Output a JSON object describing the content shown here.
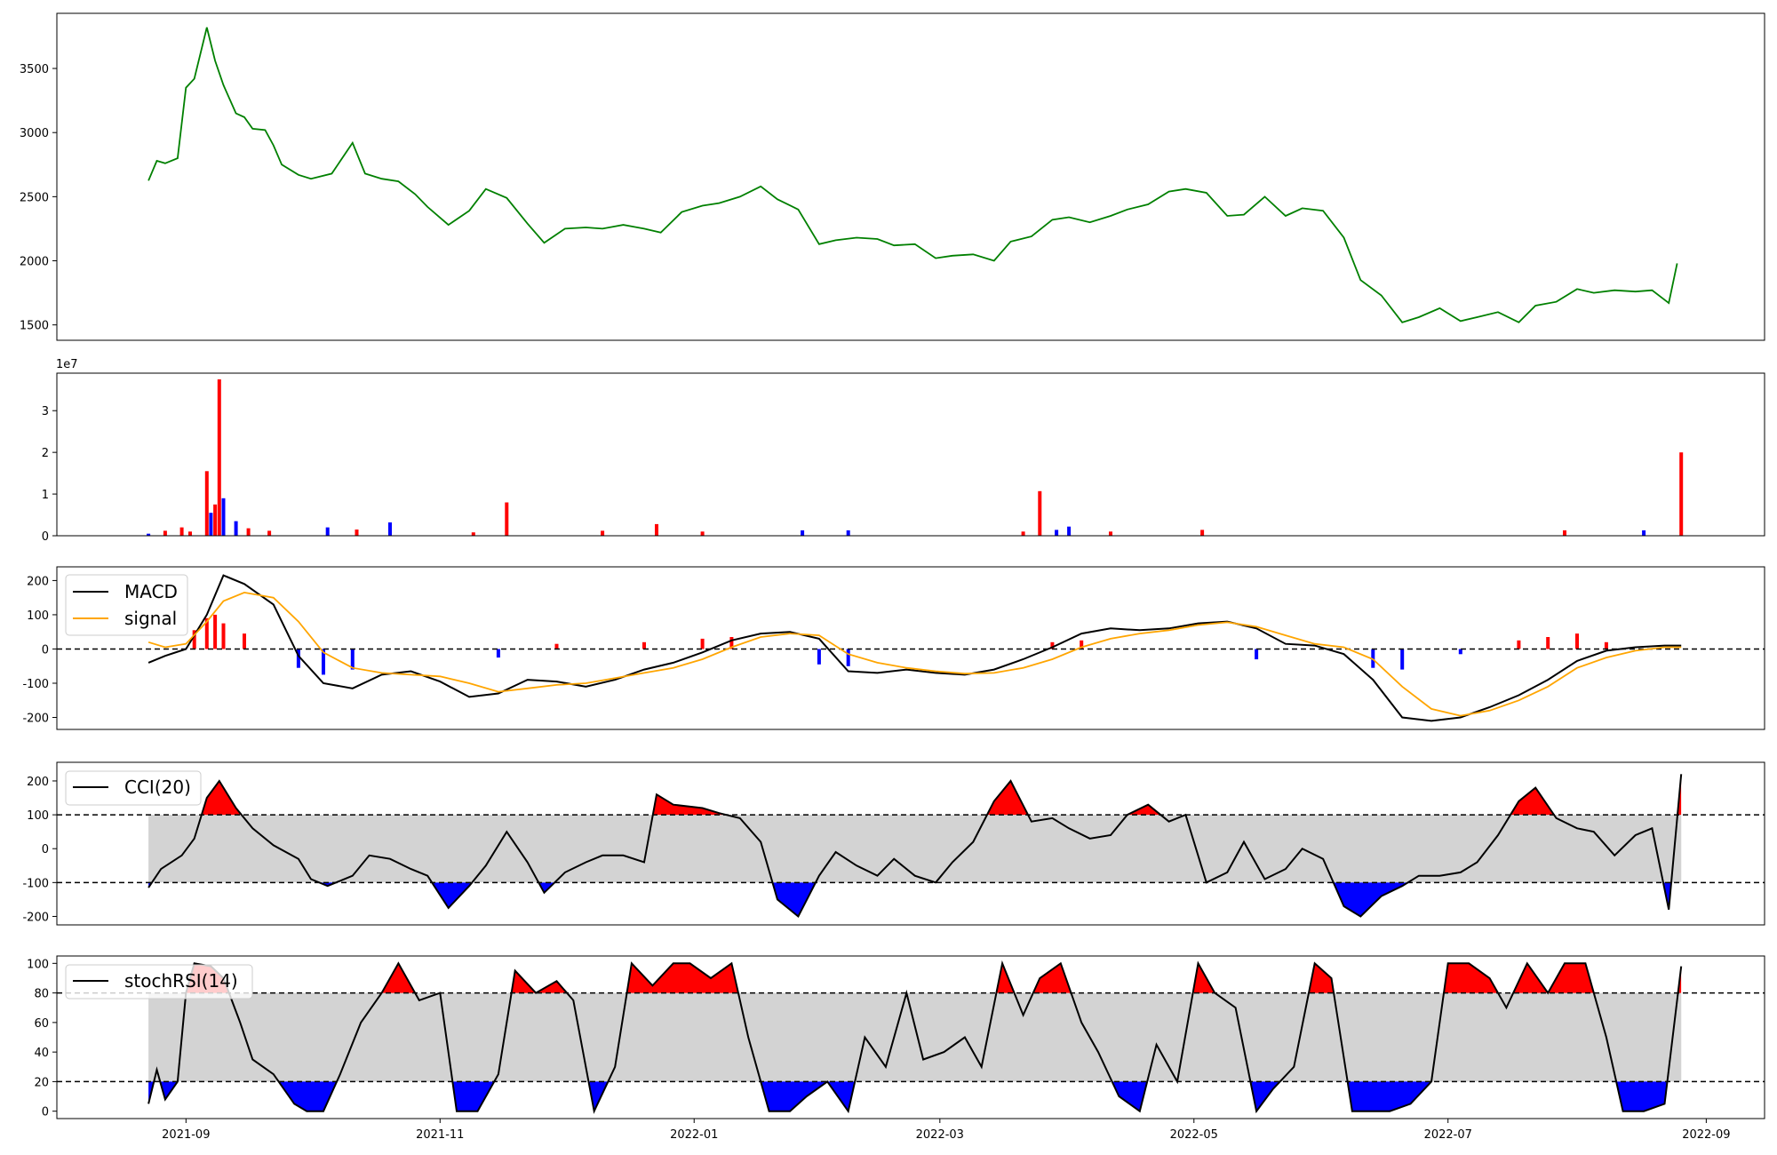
{
  "figure": {
    "x_axis": {
      "start": "2021-08-01",
      "end": "2022-09-15",
      "tick_labels": [
        "2021-09",
        "2021-11",
        "2022-01",
        "2022-03",
        "2022-05",
        "2022-07",
        "2022-09"
      ],
      "tick_dates": [
        "2021-09-01",
        "2021-11-01",
        "2022-01-01",
        "2022-03-01",
        "2022-05-01",
        "2022-07-01",
        "2022-09-01"
      ]
    }
  },
  "chart_data": [
    {
      "type": "line",
      "panel": "price",
      "color": "#008000",
      "ylim": [
        1380,
        3930
      ],
      "yticks": [
        1500,
        2000,
        2500,
        3000,
        3500
      ],
      "x": [
        "2021-08-23",
        "2021-08-25",
        "2021-08-27",
        "2021-08-30",
        "2021-09-01",
        "2021-09-03",
        "2021-09-06",
        "2021-09-08",
        "2021-09-10",
        "2021-09-13",
        "2021-09-15",
        "2021-09-17",
        "2021-09-20",
        "2021-09-22",
        "2021-09-24",
        "2021-09-28",
        "2021-10-01",
        "2021-10-06",
        "2021-10-11",
        "2021-10-14",
        "2021-10-18",
        "2021-10-22",
        "2021-10-26",
        "2021-10-29",
        "2021-11-03",
        "2021-11-08",
        "2021-11-12",
        "2021-11-17",
        "2021-11-22",
        "2021-11-26",
        "2021-12-01",
        "2021-12-06",
        "2021-12-10",
        "2021-12-15",
        "2021-12-20",
        "2021-12-24",
        "2021-12-29",
        "2022-01-03",
        "2022-01-07",
        "2022-01-12",
        "2022-01-17",
        "2022-01-21",
        "2022-01-26",
        "2022-01-31",
        "2022-02-04",
        "2022-02-09",
        "2022-02-14",
        "2022-02-18",
        "2022-02-23",
        "2022-02-28",
        "2022-03-04",
        "2022-03-09",
        "2022-03-14",
        "2022-03-18",
        "2022-03-23",
        "2022-03-28",
        "2022-04-01",
        "2022-04-06",
        "2022-04-11",
        "2022-04-15",
        "2022-04-20",
        "2022-04-25",
        "2022-04-29",
        "2022-05-04",
        "2022-05-09",
        "2022-05-13",
        "2022-05-18",
        "2022-05-23",
        "2022-05-27",
        "2022-06-01",
        "2022-06-06",
        "2022-06-10",
        "2022-06-15",
        "2022-06-20",
        "2022-06-24",
        "2022-06-29",
        "2022-07-04",
        "2022-07-08",
        "2022-07-13",
        "2022-07-18",
        "2022-07-22",
        "2022-07-27",
        "2022-08-01",
        "2022-08-05",
        "2022-08-10",
        "2022-08-15",
        "2022-08-19",
        "2022-08-23",
        "2022-08-25"
      ],
      "values": [
        2625,
        2780,
        2760,
        2800,
        3350,
        3420,
        3820,
        3560,
        3370,
        3150,
        3120,
        3030,
        3020,
        2900,
        2750,
        2670,
        2640,
        2680,
        2920,
        2680,
        2640,
        2620,
        2520,
        2420,
        2280,
        2390,
        2560,
        2490,
        2290,
        2140,
        2250,
        2260,
        2250,
        2280,
        2250,
        2220,
        2380,
        2430,
        2450,
        2500,
        2580,
        2480,
        2400,
        2130,
        2160,
        2180,
        2170,
        2120,
        2130,
        2020,
        2040,
        2050,
        2000,
        2150,
        2190,
        2320,
        2340,
        2300,
        2350,
        2400,
        2440,
        2540,
        2560,
        2530,
        2350,
        2360,
        2500,
        2350,
        2410,
        2390,
        2180,
        1850,
        1730,
        1520,
        1560,
        1630,
        1530,
        1560,
        1600,
        1520,
        1650,
        1680,
        1780,
        1750,
        1770,
        1760,
        1770,
        1670,
        1980
      ]
    },
    {
      "type": "bar",
      "panel": "volume",
      "scale_label": "1e7",
      "ylim": [
        0,
        3.9
      ],
      "yticks": [
        0,
        1,
        2,
        3
      ],
      "colors": {
        "up": "#ff0000",
        "down": "#0000ff"
      },
      "x": [
        "2021-08-23",
        "2021-08-27",
        "2021-08-31",
        "2021-09-02",
        "2021-09-06",
        "2021-09-07",
        "2021-09-08",
        "2021-09-09",
        "2021-09-10",
        "2021-09-13",
        "2021-09-16",
        "2021-09-21",
        "2021-10-05",
        "2021-10-12",
        "2021-10-20",
        "2021-11-09",
        "2021-11-17",
        "2021-12-10",
        "2021-12-23",
        "2022-01-03",
        "2022-01-27",
        "2022-02-07",
        "2022-03-21",
        "2022-03-25",
        "2022-03-29",
        "2022-04-01",
        "2022-04-11",
        "2022-05-03",
        "2022-07-29",
        "2022-08-17",
        "2022-08-26"
      ],
      "values": [
        0.05,
        0.12,
        0.2,
        0.1,
        1.55,
        0.55,
        0.75,
        3.75,
        0.9,
        0.35,
        0.18,
        0.12,
        0.2,
        0.15,
        0.32,
        0.08,
        0.8,
        0.12,
        0.28,
        0.1,
        0.13,
        0.13,
        0.1,
        1.07,
        0.14,
        0.22,
        0.1,
        0.14,
        0.13,
        0.13,
        2.0
      ],
      "direction": [
        "down",
        "up",
        "up",
        "up",
        "up",
        "down",
        "up",
        "up",
        "down",
        "down",
        "up",
        "up",
        "down",
        "up",
        "down",
        "up",
        "up",
        "up",
        "up",
        "up",
        "down",
        "down",
        "up",
        "up",
        "down",
        "down",
        "up",
        "up",
        "up",
        "down",
        "up"
      ]
    },
    {
      "type": "line",
      "panel": "macd",
      "ylim": [
        -235,
        240
      ],
      "yticks": [
        -200,
        -100,
        0,
        100,
        200
      ],
      "reference_lines": [
        0
      ],
      "legend_position": "upper left",
      "x": [
        "2021-08-23",
        "2021-08-27",
        "2021-09-01",
        "2021-09-06",
        "2021-09-10",
        "2021-09-15",
        "2021-09-22",
        "2021-09-28",
        "2021-10-04",
        "2021-10-11",
        "2021-10-18",
        "2021-10-25",
        "2021-11-01",
        "2021-11-08",
        "2021-11-15",
        "2021-11-22",
        "2021-11-29",
        "2021-12-06",
        "2021-12-13",
        "2021-12-20",
        "2021-12-27",
        "2022-01-03",
        "2022-01-10",
        "2022-01-17",
        "2022-01-24",
        "2022-01-31",
        "2022-02-07",
        "2022-02-14",
        "2022-02-21",
        "2022-02-28",
        "2022-03-07",
        "2022-03-14",
        "2022-03-21",
        "2022-03-28",
        "2022-04-04",
        "2022-04-11",
        "2022-04-18",
        "2022-04-25",
        "2022-05-02",
        "2022-05-09",
        "2022-05-16",
        "2022-05-23",
        "2022-05-30",
        "2022-06-06",
        "2022-06-13",
        "2022-06-20",
        "2022-06-27",
        "2022-07-04",
        "2022-07-11",
        "2022-07-18",
        "2022-07-25",
        "2022-08-01",
        "2022-08-08",
        "2022-08-15",
        "2022-08-22",
        "2022-08-26"
      ],
      "series": [
        {
          "name": "MACD",
          "color": "#000000",
          "values": [
            -40,
            -20,
            0,
            100,
            215,
            190,
            130,
            -20,
            -100,
            -115,
            -75,
            -65,
            -95,
            -140,
            -130,
            -90,
            -95,
            -110,
            -90,
            -60,
            -40,
            -10,
            25,
            45,
            50,
            30,
            -65,
            -70,
            -60,
            -70,
            -75,
            -60,
            -30,
            5,
            45,
            60,
            55,
            60,
            75,
            80,
            60,
            15,
            10,
            -15,
            -90,
            -200,
            -210,
            -200,
            -170,
            -135,
            -90,
            -35,
            -5,
            5,
            10,
            10
          ]
        },
        {
          "name": "signal",
          "color": "#ffa500",
          "values": [
            20,
            5,
            15,
            80,
            140,
            165,
            150,
            80,
            -10,
            -55,
            -70,
            -75,
            -80,
            -100,
            -125,
            -115,
            -105,
            -100,
            -85,
            -70,
            -55,
            -30,
            5,
            35,
            45,
            40,
            -15,
            -40,
            -55,
            -65,
            -72,
            -70,
            -55,
            -30,
            5,
            30,
            45,
            55,
            70,
            78,
            65,
            40,
            15,
            5,
            -30,
            -110,
            -175,
            -195,
            -180,
            -150,
            -110,
            -55,
            -25,
            -5,
            5,
            5
          ]
        }
      ],
      "histogram": {
        "x": [
          "2021-09-03",
          "2021-09-06",
          "2021-09-08",
          "2021-09-10",
          "2021-09-15",
          "2021-09-28",
          "2021-10-04",
          "2021-10-11",
          "2021-11-15",
          "2021-11-29",
          "2021-12-20",
          "2022-01-03",
          "2022-01-10",
          "2022-01-31",
          "2022-02-07",
          "2022-03-28",
          "2022-04-04",
          "2022-05-16",
          "2022-06-13",
          "2022-06-20",
          "2022-07-04",
          "2022-07-18",
          "2022-07-25",
          "2022-08-01",
          "2022-08-08"
        ],
        "values": [
          55,
          90,
          100,
          75,
          45,
          -55,
          -75,
          -60,
          -25,
          15,
          20,
          30,
          35,
          -45,
          -50,
          20,
          25,
          -30,
          -55,
          -60,
          -15,
          25,
          35,
          45,
          20
        ],
        "colors": {
          "positive": "#ff0000",
          "negative": "#0000ff"
        }
      }
    },
    {
      "type": "line",
      "panel": "cci",
      "ylim": [
        -225,
        255
      ],
      "yticks": [
        -200,
        -100,
        0,
        100,
        200
      ],
      "reference_lines": [
        100,
        -100
      ],
      "band_fill": "#d3d3d3",
      "above_fill": "#ff0000",
      "below_fill": "#0000ff",
      "legend_position": "upper left",
      "series": [
        {
          "name": "CCI(20)",
          "color": "#000000",
          "x": [
            "2021-08-23",
            "2021-08-26",
            "2021-08-31",
            "2021-09-03",
            "2021-09-06",
            "2021-09-09",
            "2021-09-13",
            "2021-09-17",
            "2021-09-22",
            "2021-09-28",
            "2021-10-01",
            "2021-10-05",
            "2021-10-11",
            "2021-10-15",
            "2021-10-20",
            "2021-10-25",
            "2021-10-29",
            "2021-11-03",
            "2021-11-08",
            "2021-11-12",
            "2021-11-17",
            "2021-11-22",
            "2021-11-26",
            "2021-12-01",
            "2021-12-06",
            "2021-12-10",
            "2021-12-15",
            "2021-12-20",
            "2021-12-23",
            "2021-12-27",
            "2022-01-03",
            "2022-01-07",
            "2022-01-12",
            "2022-01-17",
            "2022-01-21",
            "2022-01-26",
            "2022-01-31",
            "2022-02-04",
            "2022-02-09",
            "2022-02-14",
            "2022-02-18",
            "2022-02-23",
            "2022-02-28",
            "2022-03-04",
            "2022-03-09",
            "2022-03-14",
            "2022-03-18",
            "2022-03-23",
            "2022-03-28",
            "2022-04-01",
            "2022-04-06",
            "2022-04-11",
            "2022-04-15",
            "2022-04-20",
            "2022-04-25",
            "2022-04-29",
            "2022-05-04",
            "2022-05-09",
            "2022-05-13",
            "2022-05-18",
            "2022-05-23",
            "2022-05-27",
            "2022-06-01",
            "2022-06-06",
            "2022-06-10",
            "2022-06-15",
            "2022-06-20",
            "2022-06-24",
            "2022-06-29",
            "2022-07-04",
            "2022-07-08",
            "2022-07-13",
            "2022-07-18",
            "2022-07-22",
            "2022-07-27",
            "2022-08-01",
            "2022-08-05",
            "2022-08-10",
            "2022-08-15",
            "2022-08-19",
            "2022-08-23",
            "2022-08-26"
          ],
          "values": [
            -115,
            -60,
            -20,
            30,
            150,
            200,
            120,
            60,
            10,
            -30,
            -90,
            -110,
            -80,
            -20,
            -30,
            -60,
            -80,
            -175,
            -110,
            -50,
            50,
            -40,
            -130,
            -70,
            -40,
            -20,
            -20,
            -40,
            160,
            130,
            120,
            105,
            90,
            20,
            -150,
            -200,
            -80,
            -10,
            -50,
            -80,
            -30,
            -80,
            -100,
            -40,
            20,
            140,
            200,
            80,
            90,
            60,
            30,
            40,
            100,
            130,
            80,
            100,
            -100,
            -70,
            20,
            -90,
            -60,
            0,
            -30,
            -170,
            -200,
            -140,
            -110,
            -80,
            -80,
            -70,
            -40,
            40,
            140,
            180,
            90,
            60,
            50,
            -20,
            40,
            60,
            -180,
            220
          ]
        }
      ]
    },
    {
      "type": "line",
      "panel": "stochrsi",
      "ylim": [
        -5,
        105
      ],
      "yticks": [
        0,
        20,
        40,
        60,
        80,
        100
      ],
      "reference_lines": [
        80,
        20
      ],
      "band_fill": "#d3d3d3",
      "above_fill": "#ff0000",
      "below_fill": "#0000ff",
      "legend_position": "upper left",
      "series": [
        {
          "name": "stochRSI(14)",
          "color": "#000000",
          "x": [
            "2021-08-23",
            "2021-08-25",
            "2021-08-27",
            "2021-08-30",
            "2021-09-01",
            "2021-09-03",
            "2021-09-07",
            "2021-09-10",
            "2021-09-14",
            "2021-09-17",
            "2021-09-22",
            "2021-09-27",
            "2021-09-30",
            "2021-10-04",
            "2021-10-08",
            "2021-10-13",
            "2021-10-18",
            "2021-10-22",
            "2021-10-27",
            "2021-11-01",
            "2021-11-05",
            "2021-11-10",
            "2021-11-15",
            "2021-11-19",
            "2021-11-24",
            "2021-11-29",
            "2021-12-03",
            "2021-12-08",
            "2021-12-13",
            "2021-12-17",
            "2021-12-22",
            "2021-12-27",
            "2021-12-31",
            "2022-01-05",
            "2022-01-10",
            "2022-01-14",
            "2022-01-19",
            "2022-01-24",
            "2022-01-28",
            "2022-02-02",
            "2022-02-07",
            "2022-02-11",
            "2022-02-16",
            "2022-02-21",
            "2022-02-25",
            "2022-03-02",
            "2022-03-07",
            "2022-03-11",
            "2022-03-16",
            "2022-03-21",
            "2022-03-25",
            "2022-03-30",
            "2022-04-04",
            "2022-04-08",
            "2022-04-13",
            "2022-04-18",
            "2022-04-22",
            "2022-04-27",
            "2022-05-02",
            "2022-05-06",
            "2022-05-11",
            "2022-05-16",
            "2022-05-20",
            "2022-05-25",
            "2022-05-30",
            "2022-06-03",
            "2022-06-08",
            "2022-06-13",
            "2022-06-17",
            "2022-06-22",
            "2022-06-27",
            "2022-07-01",
            "2022-07-06",
            "2022-07-11",
            "2022-07-15",
            "2022-07-20",
            "2022-07-25",
            "2022-07-29",
            "2022-08-03",
            "2022-08-08",
            "2022-08-12",
            "2022-08-17",
            "2022-08-22",
            "2022-08-26"
          ],
          "values": [
            5,
            28,
            8,
            20,
            80,
            100,
            98,
            90,
            60,
            35,
            25,
            5,
            0,
            0,
            25,
            60,
            80,
            100,
            75,
            80,
            0,
            0,
            25,
            95,
            80,
            88,
            75,
            0,
            30,
            100,
            85,
            100,
            100,
            90,
            100,
            50,
            0,
            0,
            10,
            20,
            0,
            50,
            30,
            80,
            35,
            40,
            50,
            30,
            100,
            65,
            90,
            100,
            60,
            40,
            10,
            0,
            45,
            20,
            100,
            80,
            70,
            0,
            15,
            30,
            100,
            90,
            0,
            0,
            0,
            5,
            20,
            100,
            100,
            90,
            70,
            100,
            80,
            100,
            100,
            50,
            0,
            0,
            5,
            98
          ]
        }
      ]
    }
  ]
}
